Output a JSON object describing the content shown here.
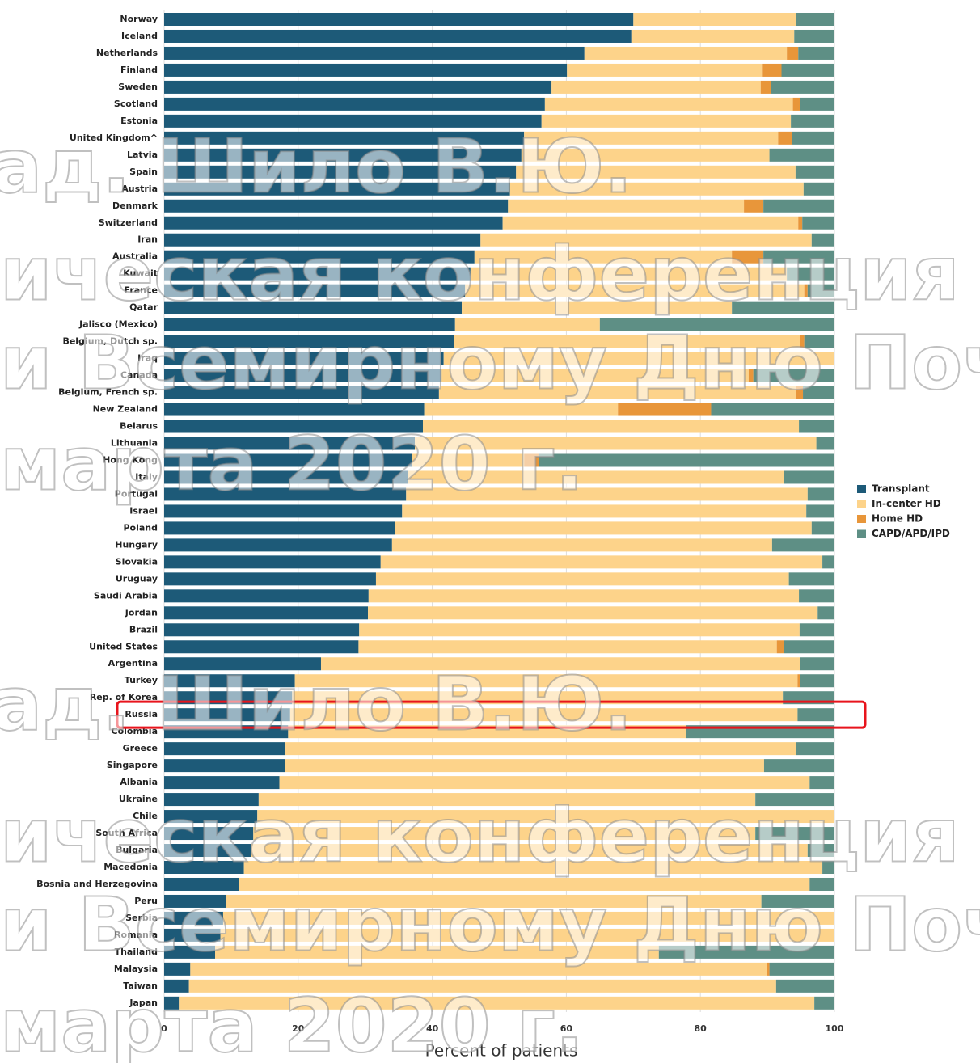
{
  "chart_data": {
    "type": "stacked_barh",
    "xlabel": "Percent of patients",
    "xlim": [
      0,
      100
    ],
    "xticks": [
      0,
      20,
      40,
      60,
      80,
      100
    ],
    "grid": true,
    "legend": "right",
    "categories": [
      "Norway",
      "Iceland",
      "Netherlands",
      "Finland",
      "Sweden",
      "Scotland",
      "Estonia",
      "United Kingdom^",
      "Latvia",
      "Spain",
      "Austria",
      "Denmark",
      "Switzerland",
      "Iran",
      "Australia",
      "Kuwait",
      "France",
      "Qatar",
      "Jalisco (Mexico)",
      "Belgium, Dutch sp.",
      "Iraq",
      "Canada",
      "Belgium, French sp.",
      "New Zealand",
      "Belarus",
      "Lithuania",
      "Hong Kong",
      "Italy",
      "Portugal",
      "Israel",
      "Poland",
      "Hungary",
      "Slovakia",
      "Uruguay",
      "Saudi Arabia",
      "Jordan",
      "Brazil",
      "United States",
      "Argentina",
      "Turkey",
      "Rep. of Korea",
      "Russia",
      "Colombia",
      "Greece",
      "Singapore",
      "Albania",
      "Ukraine",
      "Chile",
      "South Africa",
      "Bulgaria",
      "Macedonia",
      "Bosnia and Herzegovina",
      "Peru",
      "Serbia",
      "Romania",
      "Thailand",
      "Malaysia",
      "Taiwan",
      "Japan"
    ],
    "series": [
      {
        "name": "Transplant",
        "color": "#1d5a78",
        "values": [
          70.0,
          69.7,
          62.7,
          60.1,
          57.8,
          56.8,
          56.3,
          53.7,
          53.3,
          52.5,
          51.6,
          51.3,
          50.5,
          47.2,
          46.3,
          45.7,
          44.9,
          44.4,
          43.4,
          43.3,
          41.7,
          41.4,
          41.0,
          38.8,
          38.6,
          37.4,
          37.0,
          36.4,
          36.1,
          35.5,
          34.5,
          34.0,
          32.3,
          31.6,
          30.5,
          30.4,
          29.1,
          29.0,
          23.4,
          19.5,
          19.1,
          18.8,
          18.5,
          18.1,
          18.0,
          17.2,
          14.1,
          13.9,
          13.3,
          13.0,
          11.9,
          11.1,
          9.2,
          8.8,
          8.4,
          7.6,
          3.9,
          3.7,
          2.2
        ]
      },
      {
        "name": "In-center HD",
        "color": "#fdd38a",
        "values": [
          24.3,
          24.3,
          30.2,
          29.2,
          31.2,
          37.0,
          37.2,
          37.9,
          37.0,
          41.7,
          43.8,
          35.2,
          44.1,
          49.4,
          38.4,
          47.2,
          50.6,
          40.3,
          21.6,
          51.6,
          58.3,
          45.8,
          53.3,
          28.9,
          56.1,
          59.9,
          16.7,
          56.1,
          59.9,
          60.3,
          62.1,
          56.7,
          65.9,
          61.6,
          64.2,
          67.1,
          65.7,
          62.4,
          71.5,
          75.0,
          73.2,
          75.7,
          59.4,
          76.2,
          71.5,
          79.1,
          74.1,
          86.1,
          74.9,
          83.0,
          86.3,
          85.2,
          79.9,
          91.2,
          91.6,
          66.2,
          86.0,
          87.6,
          94.8
        ]
      },
      {
        "name": "Home HD",
        "color": "#e8963a",
        "values": [
          0,
          0,
          1.7,
          2.8,
          1.5,
          1.1,
          0,
          2.1,
          0,
          0,
          0,
          2.9,
          0.6,
          0,
          4.7,
          0,
          0.5,
          0,
          0,
          0.6,
          0,
          0.7,
          1.0,
          13.9,
          0,
          0,
          2.2,
          0,
          0,
          0,
          0,
          0,
          0,
          0,
          0,
          0,
          0,
          1.1,
          0,
          0.4,
          0,
          0,
          0,
          0,
          0,
          0,
          0,
          0,
          0,
          0,
          0,
          0,
          0,
          0,
          0,
          0,
          0.4,
          0,
          0
        ]
      },
      {
        "name": "CAPD/APD/IPD",
        "color": "#5e8f85",
        "values": [
          5.7,
          6.0,
          5.4,
          7.9,
          9.5,
          5.1,
          6.5,
          6.3,
          9.7,
          5.8,
          4.6,
          10.6,
          4.8,
          3.4,
          10.6,
          7.1,
          4.0,
          15.3,
          35.0,
          4.5,
          0,
          12.1,
          4.7,
          18.4,
          5.3,
          2.7,
          44.1,
          7.5,
          4.0,
          4.2,
          3.4,
          9.3,
          1.8,
          6.8,
          5.3,
          2.5,
          5.2,
          7.5,
          5.1,
          5.1,
          7.7,
          5.5,
          22.1,
          5.7,
          10.5,
          3.7,
          11.8,
          0,
          11.8,
          4.0,
          1.8,
          3.7,
          10.9,
          0,
          0,
          26.2,
          9.7,
          8.7,
          3.0
        ]
      }
    ],
    "annotations": [
      "ад. Шило В.Ю.",
      "ическая конференция РДО",
      "и Всемирному Дню Почки",
      "марта 2020 г.",
      "ад. Шило В.Ю.",
      "ическая конференция РДО,",
      "и Всемирному Дню Почки",
      "марта 2020 г."
    ],
    "highlight": "Russia"
  }
}
